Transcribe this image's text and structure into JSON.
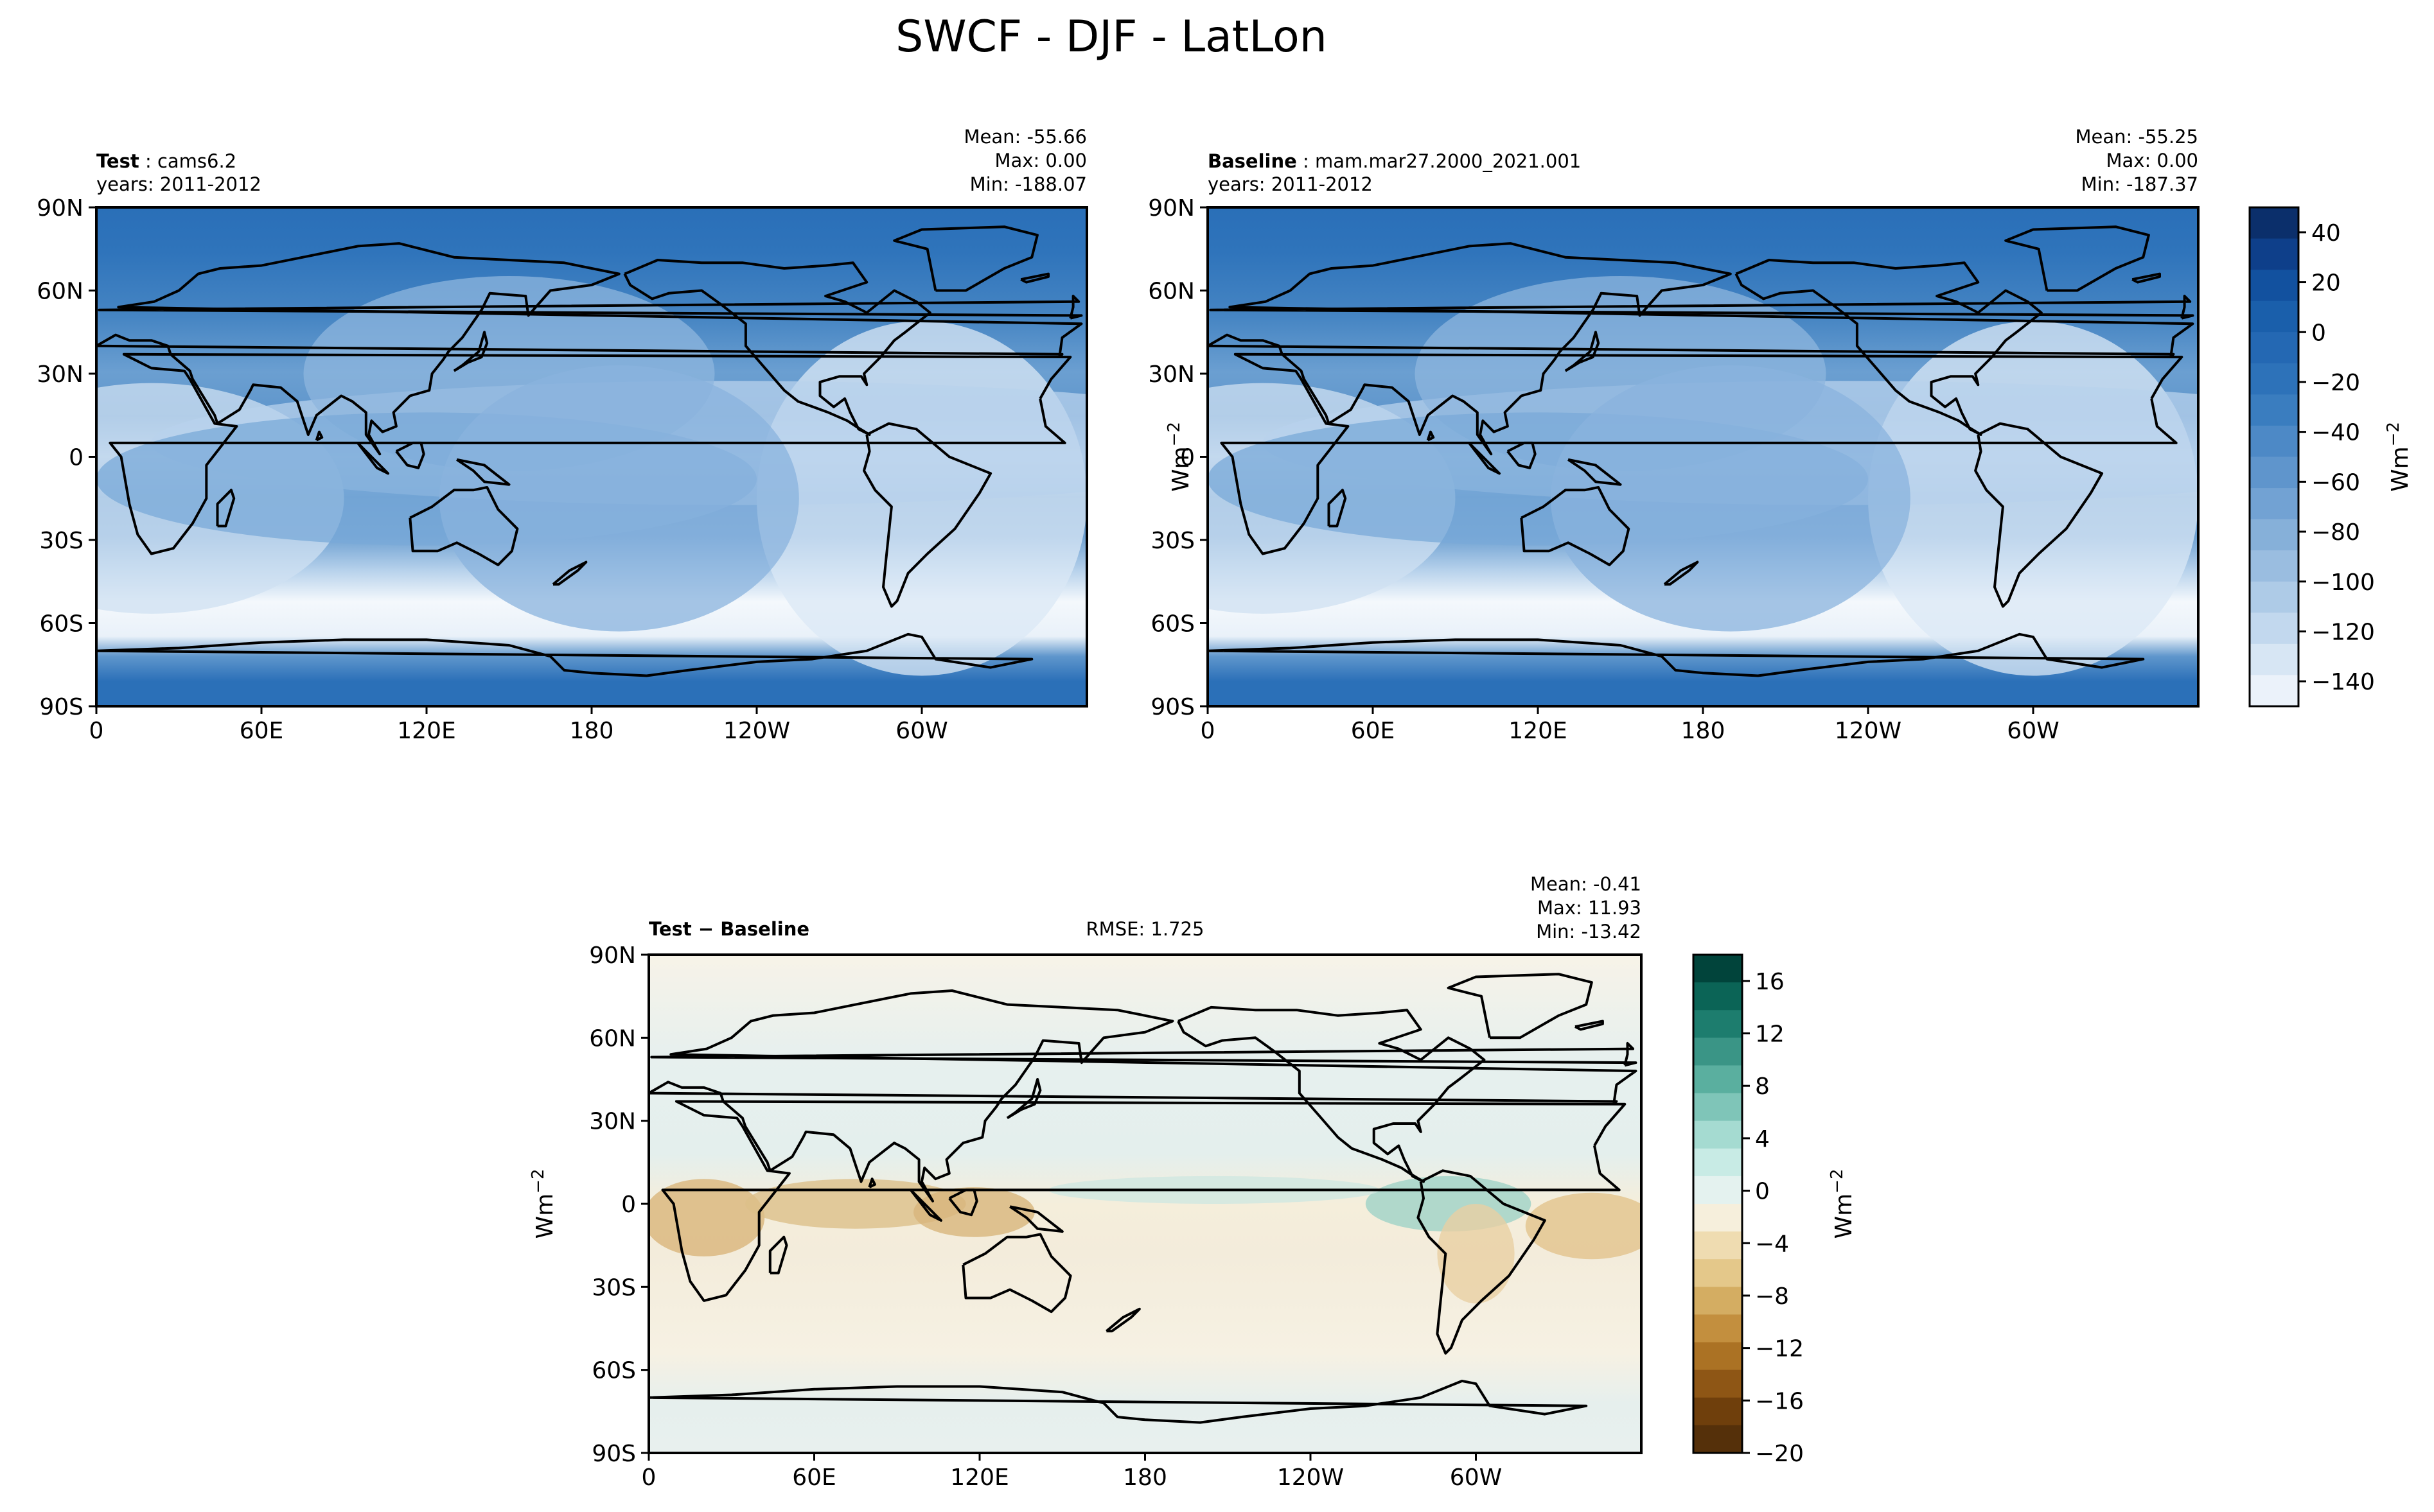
{
  "figure": {
    "suptitle": "SWCF - DJF - LatLon"
  },
  "chart_data": [
    {
      "type": "heatmap",
      "panel": "test",
      "label_bold": "Test",
      "label_value": "cams6.2",
      "years": "years: 2011-2012",
      "stats": [
        "Mean: -55.66",
        "Max:  0.00",
        "Min: -188.07"
      ],
      "xticks": [
        "0",
        "60E",
        "120E",
        "180",
        "120W",
        "60W"
      ],
      "yticks": [
        "90N",
        "60N",
        "30N",
        "0",
        "30S",
        "60S",
        "90S"
      ],
      "xlim": [
        0,
        360
      ],
      "ylim": [
        -90,
        90
      ],
      "units": "Wm",
      "units_sup": "−2",
      "cmap": "Blues_r",
      "stat_values": {
        "mean": -55.66,
        "max": 0.0,
        "min": -188.07
      }
    },
    {
      "type": "heatmap",
      "panel": "baseline",
      "label_bold": "Baseline",
      "label_value": "mam.mar27.2000_2021.001",
      "years": "years: 2011-2012",
      "stats": [
        "Mean: -55.25",
        "Max:  0.00",
        "Min: -187.37"
      ],
      "xticks": [
        "0",
        "60E",
        "120E",
        "180",
        "120W",
        "60W"
      ],
      "yticks": [
        "90N",
        "60N",
        "30N",
        "0",
        "30S",
        "60S",
        "90S"
      ],
      "xlim": [
        0,
        360
      ],
      "ylim": [
        -90,
        90
      ],
      "units": "Wm",
      "units_sup": "−2",
      "cmap": "Blues_r",
      "stat_values": {
        "mean": -55.25,
        "max": 0.0,
        "min": -187.37
      },
      "colorbar": {
        "ticks": [
          "40",
          "20",
          "0",
          "−20",
          "−40",
          "−60",
          "−80",
          "−100",
          "−120",
          "−140"
        ],
        "tick_values": [
          40,
          20,
          0,
          -20,
          -40,
          -60,
          -80,
          -100,
          -120,
          -140
        ],
        "range": [
          -150,
          50
        ],
        "colors": [
          "#0b2f6b",
          "#0e3f8a",
          "#12519f",
          "#1a5fab",
          "#2468b3",
          "#2d72b9",
          "#3a7dbf",
          "#4d89c6",
          "#5f95cc",
          "#72a2d3",
          "#86b0d9",
          "#9abde0",
          "#aecbe7",
          "#c2d8ee",
          "#d7e6f4",
          "#ebf2fa"
        ]
      }
    },
    {
      "type": "heatmap",
      "panel": "difference",
      "label_bold": "Test",
      "label_rest": " − Baseline",
      "rmse": "RMSE: 1.725",
      "stats": [
        "Mean: -0.41",
        "Max: 11.93",
        "Min: -13.42"
      ],
      "xticks": [
        "0",
        "60E",
        "120E",
        "180",
        "120W",
        "60W"
      ],
      "yticks": [
        "90N",
        "60N",
        "30N",
        "0",
        "30S",
        "60S",
        "90S"
      ],
      "xlim": [
        0,
        360
      ],
      "ylim": [
        -90,
        90
      ],
      "units": "Wm",
      "units_sup": "−2",
      "cmap": "BrBG",
      "rmse_value": 1.725,
      "stat_values": {
        "mean": -0.41,
        "max": 11.93,
        "min": -13.42
      },
      "colorbar": {
        "ticks": [
          "16",
          "12",
          "8",
          "4",
          "0",
          "−4",
          "−8",
          "−12",
          "−16",
          "−20"
        ],
        "tick_values": [
          16,
          12,
          8,
          4,
          0,
          -4,
          -8,
          -12,
          -16,
          -20
        ],
        "range": [
          -20,
          18
        ],
        "colors": [
          "#01443b",
          "#0b6456",
          "#1d7d6e",
          "#3a9586",
          "#5aaf9f",
          "#7fc5b8",
          "#a5dbd1",
          "#c8ebe5",
          "#e4f2ef",
          "#f6efdc",
          "#efdcb1",
          "#e4c88a",
          "#d4ad62",
          "#c38f3e",
          "#ab7224",
          "#8e5615",
          "#6f3f0c",
          "#55300a"
        ]
      }
    }
  ]
}
